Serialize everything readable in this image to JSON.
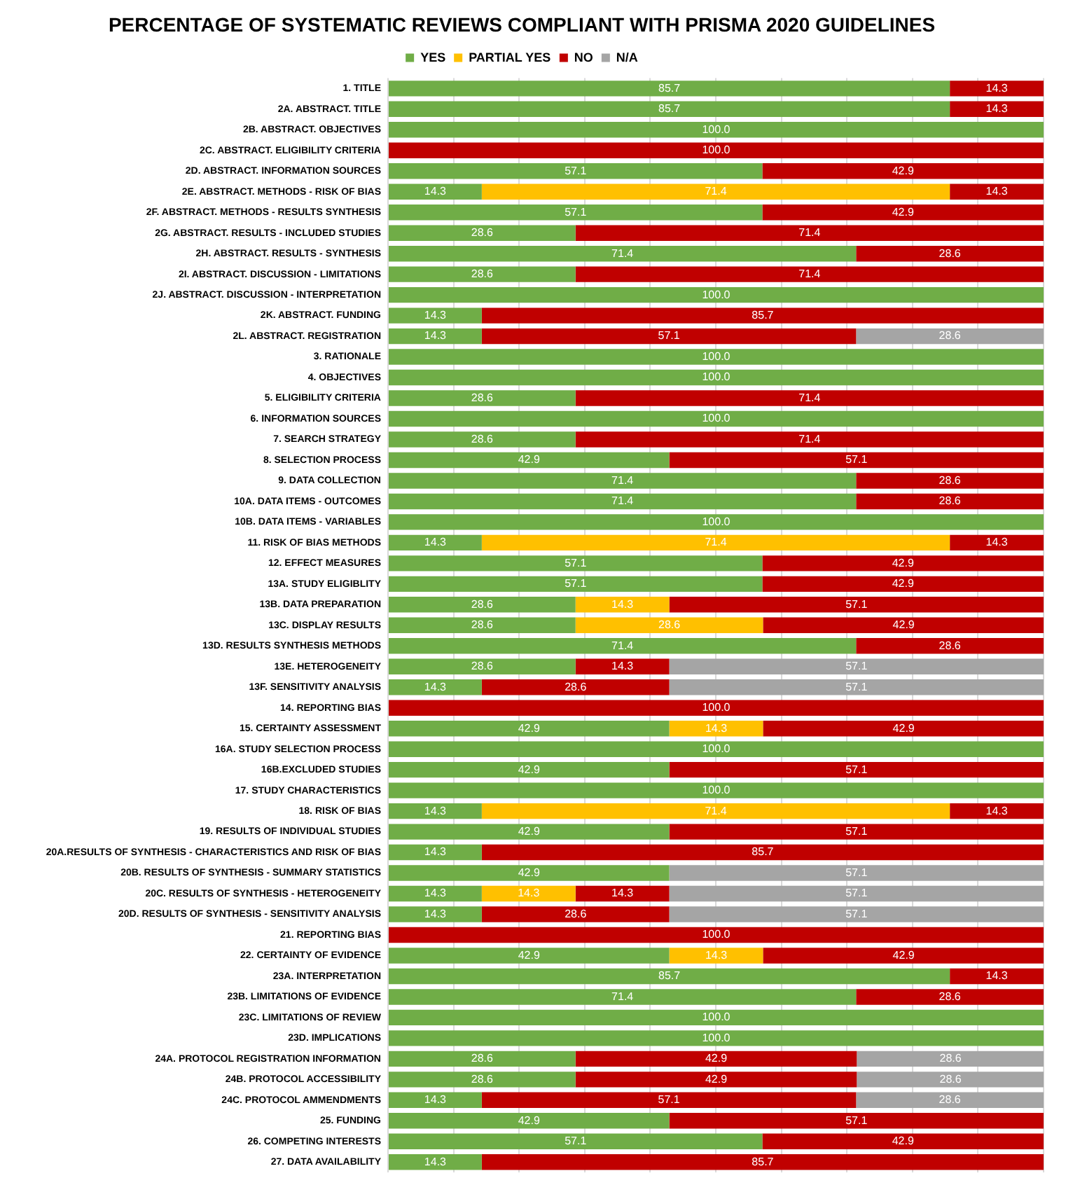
{
  "chart_data": {
    "type": "bar",
    "orientation": "horizontal",
    "stacked": true,
    "title": "PERCENTAGE OF SYSTEMATIC REVIEWS COMPLIANT WITH PRISMA 2020 GUIDELINES",
    "legend": "top",
    "grid": "x",
    "tick_labels": "y",
    "xlim": [
      0,
      100
    ],
    "xticks": [
      {
        "value": 0,
        "label": null
      },
      {
        "value": 10,
        "label": null
      },
      {
        "value": 20,
        "label": null
      },
      {
        "value": 30,
        "label": null
      },
      {
        "value": 40,
        "label": null
      },
      {
        "value": 50,
        "label": null
      },
      {
        "value": 60,
        "label": null
      },
      {
        "value": 70,
        "label": null
      },
      {
        "value": 80,
        "label": null
      },
      {
        "value": 90,
        "label": null
      },
      {
        "value": 100,
        "label": null
      }
    ],
    "categories": [
      "1. TITLE",
      "2A. ABSTRACT. TITLE",
      "2B. ABSTRACT. OBJECTIVES",
      "2C. ABSTRACT. ELIGIBILITY CRITERIA",
      "2D. ABSTRACT. INFORMATION SOURCES",
      "2E. ABSTRACT. METHODS - RISK OF BIAS",
      "2F. ABSTRACT. METHODS - RESULTS SYNTHESIS",
      "2G. ABSTRACT. RESULTS - INCLUDED STUDIES",
      "2H. ABSTRACT. RESULTS - SYNTHESIS",
      "2I. ABSTRACT. DISCUSSION - LIMITATIONS",
      "2J. ABSTRACT. DISCUSSION - INTERPRETATION",
      "2K. ABSTRACT. FUNDING",
      "2L. ABSTRACT. REGISTRATION",
      "3. RATIONALE",
      "4. OBJECTIVES",
      "5. ELIGIBILITY CRITERIA",
      "6. INFORMATION SOURCES",
      "7. SEARCH STRATEGY",
      "8. SELECTION PROCESS",
      "9. DATA COLLECTION",
      "10A. DATA ITEMS - OUTCOMES",
      "10B. DATA ITEMS - VARIABLES",
      "11. RISK OF BIAS METHODS",
      "12. EFFECT MEASURES",
      "13A. STUDY ELIGIBLITY",
      "13B. DATA PREPARATION",
      "13C. DISPLAY RESULTS",
      "13D. RESULTS SYNTHESIS METHODS",
      "13E. HETEROGENEITY",
      "13F. SENSITIVITY ANALYSIS",
      "14. REPORTING BIAS",
      "15. CERTAINTY ASSESSMENT",
      "16A. STUDY SELECTION PROCESS",
      "16B.EXCLUDED STUDIES",
      "17. STUDY CHARACTERISTICS",
      "18. RISK OF BIAS",
      "19. RESULTS OF INDIVIDUAL STUDIES",
      "20A.RESULTS OF SYNTHESIS - CHARACTERISTICS AND RISK OF BIAS",
      "20B. RESULTS OF SYNTHESIS - SUMMARY STATISTICS",
      "20C. RESULTS OF SYNTHESIS - HETEROGENEITY",
      "20D. RESULTS OF SYNTHESIS - SENSITIVITY ANALYSIS",
      "21. REPORTING BIAS",
      "22. CERTAINTY OF EVIDENCE",
      "23A. INTERPRETATION",
      "23B. LIMITATIONS OF EVIDENCE",
      "23C. LIMITATIONS OF REVIEW",
      "23D. IMPLICATIONS",
      "24A. PROTOCOL REGISTRATION INFORMATION",
      "24B. PROTOCOL ACCESSIBILITY",
      "24C. PROTOCOL AMMENDMENTS",
      "25. FUNDING",
      "26. COMPETING INTERESTS",
      "27. DATA AVAILABILITY"
    ],
    "series": [
      {
        "name": "YES",
        "color": "#70ad47",
        "values": [
          85.7,
          85.7,
          100,
          null,
          57.1,
          14.3,
          57.1,
          28.6,
          71.4,
          28.6,
          100,
          14.3,
          14.3,
          100,
          100,
          28.6,
          100,
          28.6,
          42.9,
          71.4,
          71.4,
          100,
          14.3,
          57.1,
          57.1,
          28.6,
          28.6,
          71.4,
          28.6,
          14.3,
          null,
          42.9,
          100,
          42.9,
          100,
          14.3,
          42.9,
          14.3,
          42.9,
          14.3,
          14.3,
          null,
          42.9,
          85.7,
          71.4,
          100,
          100,
          28.6,
          28.6,
          14.3,
          42.9,
          57.1,
          14.3
        ],
        "value_labels": [
          "85.7",
          "85.7",
          "100.0",
          null,
          "57.1",
          "14.3",
          "57.1",
          "28.6",
          "71.4",
          "28.6",
          "100.0",
          "14.3",
          "14.3",
          "100.0",
          "100.0",
          "28.6",
          "100.0",
          "28.6",
          "42.9",
          "71.4",
          "71.4",
          "100.0",
          "14.3",
          "57.1",
          "57.1",
          "28.6",
          "28.6",
          "71.4",
          "28.6",
          "14.3",
          null,
          "42.9",
          "100.0",
          "42.9",
          "100.0",
          "14.3",
          "42.9",
          "14.3",
          "42.9",
          "14.3",
          "14.3",
          null,
          "42.9",
          "85.7",
          "71.4",
          "100.0",
          "100.0",
          "28.6",
          "28.6",
          "14.3",
          "42.9",
          "57.1",
          "14.3"
        ]
      },
      {
        "name": "PARTIAL YES",
        "color": "#ffc000",
        "values": [
          null,
          null,
          null,
          null,
          null,
          71.4,
          null,
          null,
          null,
          null,
          null,
          null,
          null,
          null,
          null,
          null,
          null,
          null,
          null,
          null,
          null,
          null,
          71.4,
          null,
          null,
          14.3,
          28.6,
          null,
          null,
          null,
          null,
          14.3,
          null,
          null,
          null,
          71.4,
          null,
          null,
          null,
          14.3,
          null,
          null,
          14.3,
          null,
          null,
          null,
          null,
          null,
          null,
          null,
          null,
          null,
          null
        ],
        "value_labels": [
          null,
          null,
          null,
          null,
          null,
          "71.4",
          null,
          null,
          null,
          null,
          null,
          null,
          null,
          null,
          null,
          null,
          null,
          null,
          null,
          null,
          null,
          null,
          "71.4",
          null,
          null,
          "14.3",
          "28.6",
          null,
          null,
          null,
          null,
          "14.3",
          null,
          null,
          null,
          "71.4",
          null,
          null,
          null,
          "14.3",
          null,
          null,
          "14.3",
          null,
          null,
          null,
          null,
          null,
          null,
          null,
          null,
          null,
          null
        ]
      },
      {
        "name": "NO",
        "color": "#c00000",
        "values": [
          14.3,
          14.3,
          null,
          100,
          42.9,
          14.3,
          42.9,
          71.4,
          28.6,
          71.4,
          null,
          85.7,
          57.1,
          null,
          null,
          71.4,
          null,
          71.4,
          57.1,
          28.6,
          28.6,
          null,
          14.3,
          42.9,
          42.9,
          57.1,
          42.9,
          28.6,
          14.3,
          28.6,
          100,
          42.9,
          null,
          57.1,
          null,
          14.3,
          57.1,
          85.7,
          null,
          14.3,
          28.6,
          100,
          42.9,
          14.3,
          28.6,
          null,
          null,
          42.9,
          42.9,
          57.1,
          57.1,
          42.9,
          85.7
        ],
        "value_labels": [
          "14.3",
          "14.3",
          null,
          "100.0",
          "42.9",
          "14.3",
          "42.9",
          "71.4",
          "28.6",
          "71.4",
          null,
          "85.7",
          "57.1",
          null,
          null,
          "71.4",
          null,
          "71.4",
          "57.1",
          "28.6",
          "28.6",
          null,
          "14.3",
          "42.9",
          "42.9",
          "57.1",
          "42.9",
          "28.6",
          "14.3",
          "28.6",
          "100.0",
          "42.9",
          null,
          "57.1",
          null,
          "14.3",
          "57.1",
          "85.7",
          null,
          "14.3",
          "28.6",
          "100.0",
          "42.9",
          "14.3",
          "28.6",
          null,
          null,
          "42.9",
          "42.9",
          "57.1",
          "57.1",
          "42.9",
          "85.7"
        ]
      },
      {
        "name": "N/A",
        "color": "#a5a5a5",
        "values": [
          null,
          null,
          null,
          null,
          null,
          null,
          null,
          null,
          null,
          null,
          null,
          null,
          28.6,
          null,
          null,
          null,
          null,
          null,
          null,
          null,
          null,
          null,
          null,
          null,
          null,
          null,
          null,
          null,
          57.1,
          57.1,
          null,
          null,
          null,
          null,
          null,
          null,
          null,
          null,
          57.1,
          57.1,
          57.1,
          null,
          null,
          null,
          null,
          null,
          null,
          28.6,
          28.6,
          28.6,
          null,
          null,
          null
        ],
        "value_labels": [
          null,
          null,
          null,
          null,
          null,
          null,
          null,
          null,
          null,
          null,
          null,
          null,
          "28.6",
          null,
          null,
          null,
          null,
          null,
          null,
          null,
          null,
          null,
          null,
          null,
          null,
          null,
          null,
          null,
          "57.1",
          "57.1",
          null,
          null,
          null,
          null,
          null,
          null,
          null,
          null,
          "57.1",
          "57.1",
          "57.1",
          null,
          null,
          null,
          null,
          null,
          null,
          "28.6",
          "28.6",
          "28.6",
          null,
          null,
          null
        ]
      }
    ]
  }
}
